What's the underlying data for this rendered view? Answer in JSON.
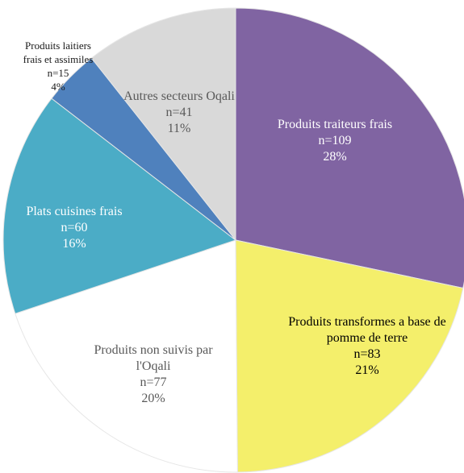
{
  "chart_data": {
    "type": "pie",
    "categories": [
      "Produits traiteurs frais",
      "Produits transformes a base de pomme de terre",
      "Produits non suivis par l'Oqali",
      "Plats cuisines frais",
      "Produits laitiers frais et assimiles",
      "Autres secteurs Oqali"
    ],
    "values": [
      109,
      83,
      77,
      60,
      15,
      41
    ],
    "value_labels": [
      "n=109",
      "n=83",
      "n=77",
      "n=60",
      "n=15",
      "n=41"
    ],
    "shares": [
      28,
      21,
      20,
      16,
      4,
      11
    ],
    "share_labels": [
      "28%",
      "21%",
      "20%",
      "16%",
      "4%",
      "11%"
    ],
    "colors": [
      "#8064a2",
      "#f4ef6b",
      "#ffffff",
      "#4bacc6",
      "#4f81bd",
      "#d9d9d9"
    ]
  }
}
